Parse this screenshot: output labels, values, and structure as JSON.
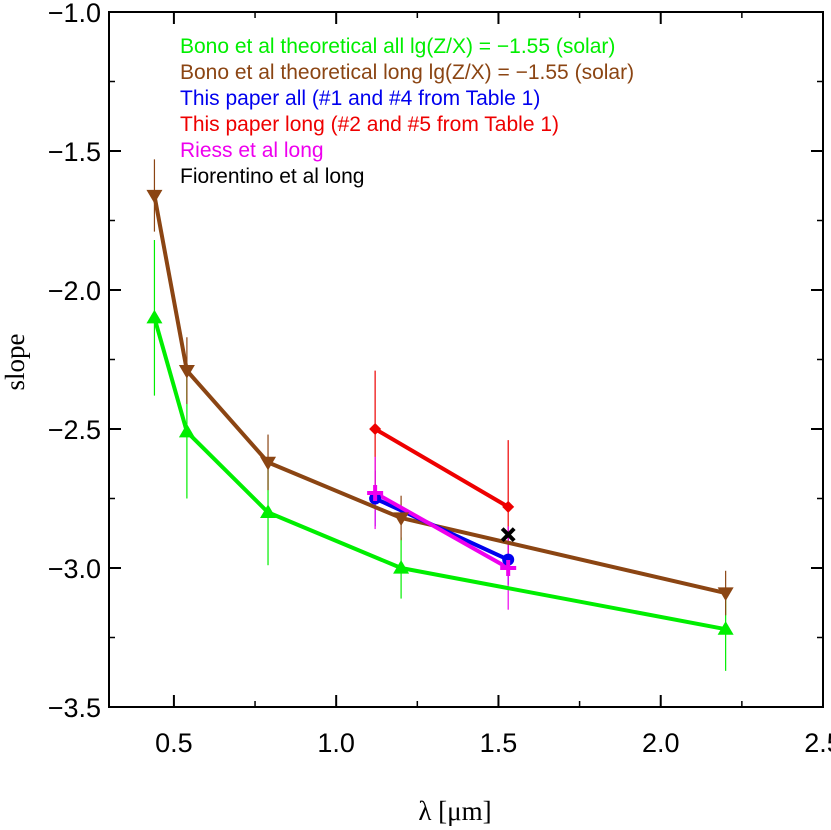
{
  "chart_data": {
    "type": "line",
    "title": "",
    "xlabel": "λ [μm]",
    "ylabel": "slope",
    "xlim": [
      0.3,
      2.5
    ],
    "ylim": [
      -3.5,
      -1.0
    ],
    "x_ticks": [
      "0.5",
      "1.0",
      "1.5",
      "2.0",
      "2.5"
    ],
    "y_ticks": [
      "−1.0",
      "−1.5",
      "−2.0",
      "−2.5",
      "−3.0",
      "−3.5"
    ],
    "grid": false,
    "legend_position": "top-right",
    "series": [
      {
        "name": "Bono et al theoretical all lg(Z/X) = −1.55 (solar)",
        "color": "#00ee00",
        "marker": "triangle-up",
        "x": [
          0.44,
          0.54,
          0.79,
          1.2,
          2.2
        ],
        "y": [
          -2.1,
          -2.51,
          -2.8,
          -3.0,
          -3.22
        ],
        "err": [
          0.28,
          0.24,
          0.19,
          0.11,
          0.15
        ]
      },
      {
        "name": "Bono et al theoretical long lg(Z/X) = −1.55 (solar)",
        "color": "#8b4513",
        "marker": "triangle-down",
        "x": [
          0.44,
          0.54,
          0.79,
          1.2,
          2.2
        ],
        "y": [
          -1.66,
          -2.29,
          -2.62,
          -2.82,
          -3.09
        ],
        "err": [
          0.13,
          0.12,
          0.1,
          0.08,
          0.08
        ]
      },
      {
        "name": "This paper all (#1 and #4 from Table 1)",
        "color": "#0000ee",
        "marker": "circle",
        "x": [
          1.12,
          1.53
        ],
        "y": [
          -2.75,
          -2.97
        ],
        "err": [
          0.1,
          0.09
        ]
      },
      {
        "name": "This paper long (#2 and #5 from Table 1)",
        "color": "#ee0000",
        "marker": "diamond",
        "x": [
          1.12,
          1.53
        ],
        "y": [
          -2.5,
          -2.78
        ],
        "err": [
          0.21,
          0.24
        ]
      },
      {
        "name": "Riess et al long",
        "color": "#ee00ee",
        "marker": "plus",
        "x": [
          1.12,
          1.53
        ],
        "y": [
          -2.73,
          -3.0
        ],
        "err": [
          0.13,
          0.15
        ]
      },
      {
        "name": "Fiorentino et al long",
        "color": "#000000",
        "marker": "x",
        "x": [
          1.53
        ],
        "y": [
          -2.88
        ],
        "err": [
          0
        ]
      }
    ]
  }
}
